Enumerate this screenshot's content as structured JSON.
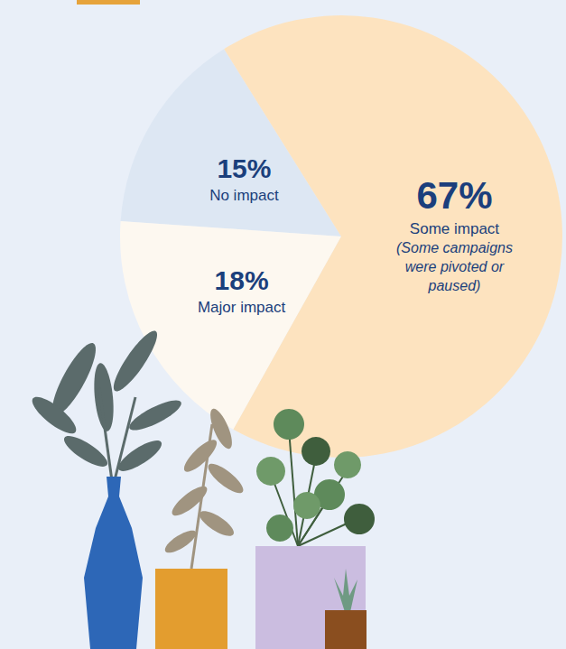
{
  "chart_data": {
    "type": "pie",
    "categories": [
      "No impact",
      "Major impact",
      "Some impact"
    ],
    "values": [
      15,
      18,
      67
    ],
    "value_labels": [
      "15%",
      "18%",
      "67%"
    ],
    "colors": [
      "#dde7f3",
      "#fdf8f0",
      "#fde3bf"
    ],
    "data_labels": true,
    "annotations": [
      {
        "category": "Some impact",
        "text": "(Some campaigns were pivoted or paused)"
      }
    ]
  }
}
